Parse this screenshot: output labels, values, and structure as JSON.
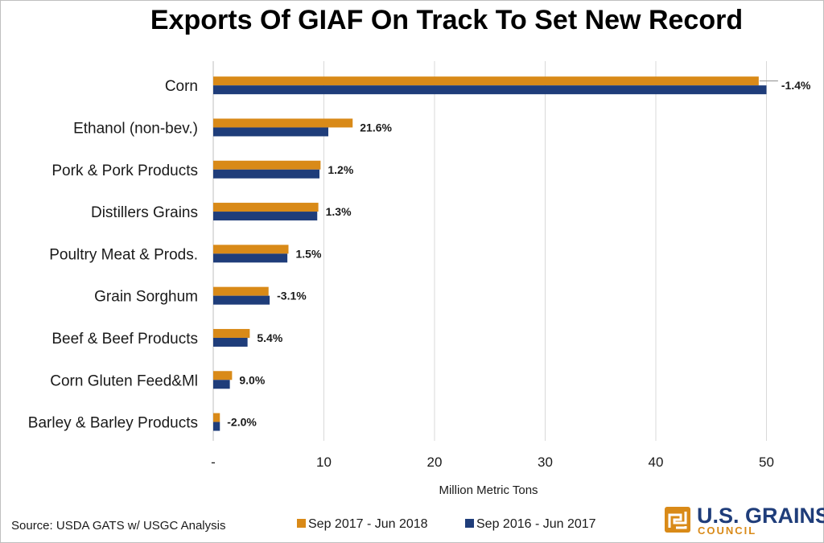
{
  "chart_data": {
    "type": "bar",
    "orientation": "horizontal",
    "title": "Exports Of GIAF On Track To Set New Record",
    "xlabel": "Million Metric Tons",
    "ylabel": "",
    "xlim": [
      0,
      53
    ],
    "xticks": [
      0,
      10,
      20,
      30,
      40,
      50
    ],
    "xtick_labels": [
      "-",
      "10",
      "20",
      "30",
      "40",
      "50"
    ],
    "grid": true,
    "legend_position": "bottom",
    "categories": [
      "Corn",
      "Ethanol (non-bev.)",
      "Pork & Pork Products",
      "Distillers Grains",
      "Poultry Meat & Prods.",
      "Grain Sorghum",
      "Beef & Beef Products",
      "Corn Gluten Feed&Ml",
      "Barley & Barley Products"
    ],
    "series": [
      {
        "name": "Sep 2017 - Jun 2018",
        "color": "#d98a18",
        "values": [
          49.3,
          12.6,
          9.7,
          9.5,
          6.8,
          5.0,
          3.3,
          1.7,
          0.6
        ]
      },
      {
        "name": "Sep 2016 - Jun 2017",
        "color": "#1f3d7a",
        "values": [
          50.0,
          10.4,
          9.6,
          9.4,
          6.7,
          5.1,
          3.1,
          1.5,
          0.6
        ]
      }
    ],
    "data_labels": [
      "-1.4%",
      "21.6%",
      "1.2%",
      "1.3%",
      "1.5%",
      "-3.1%",
      "5.4%",
      "9.0%",
      "-2.0%"
    ]
  },
  "source": "Source: USDA GATS w/ USGC Analysis",
  "logo": {
    "name": "U.S. GRAINS",
    "subtitle": "COUNCIL",
    "colors": {
      "blue": "#1f3d7a",
      "orange": "#d98a18"
    }
  }
}
